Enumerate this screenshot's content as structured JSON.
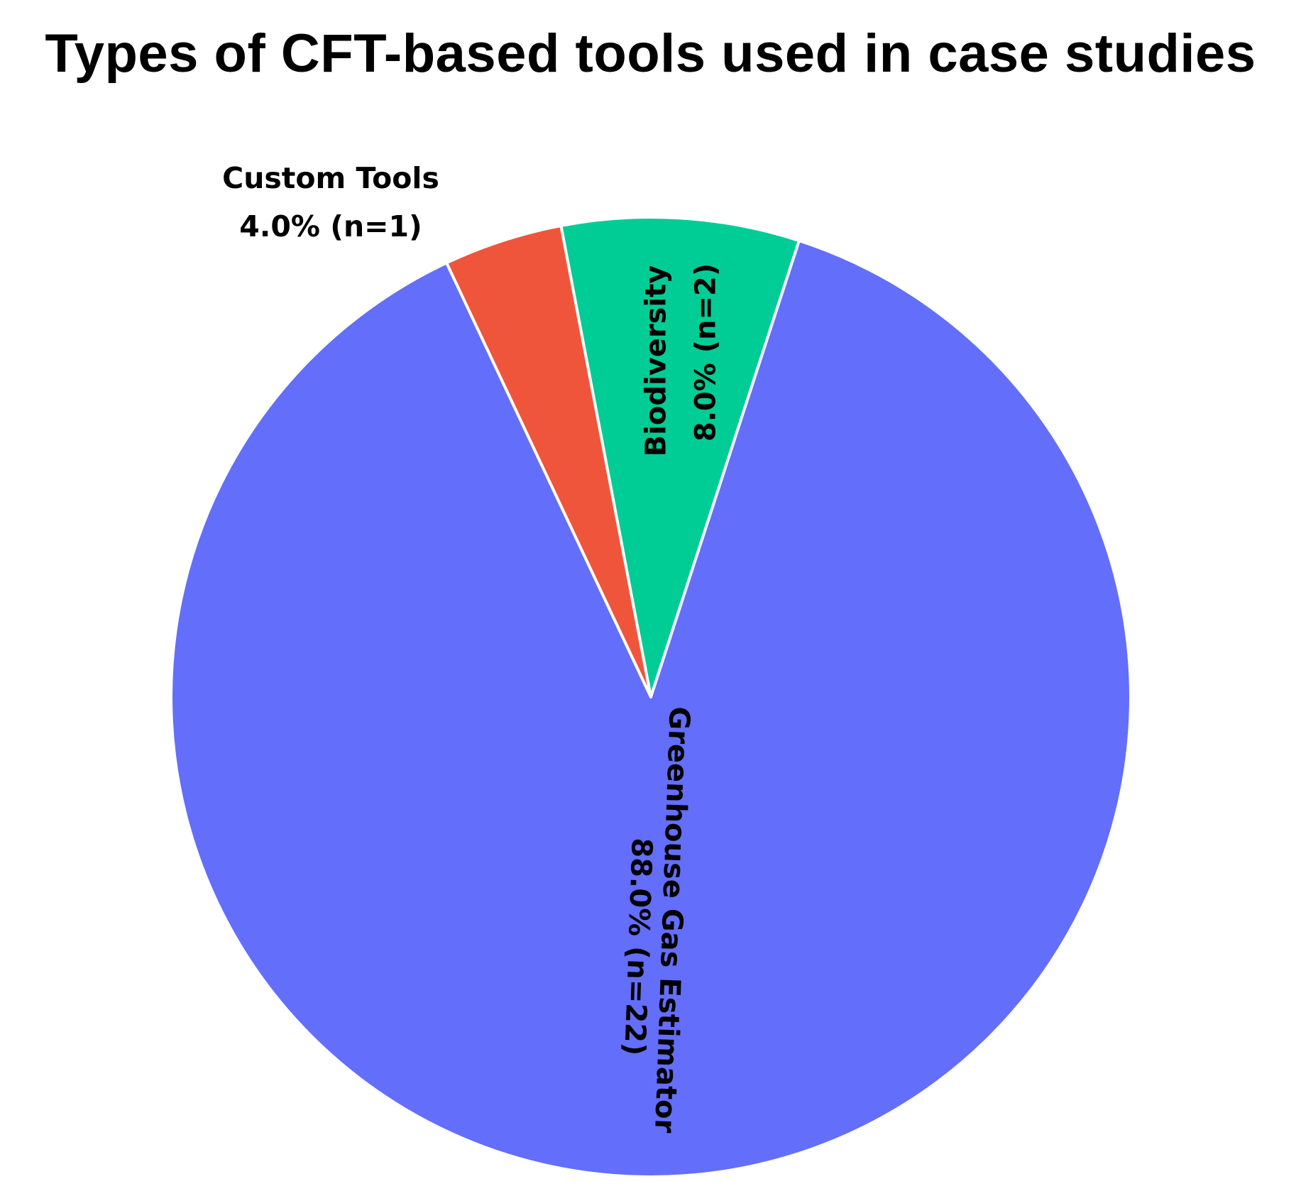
{
  "chart_data": {
    "type": "pie",
    "title": "Types of CFT-based tools used in case studies",
    "slices": [
      {
        "label": "Greenhouse Gas Estimator",
        "pct_text": "88.0% (n=22)",
        "value": 22,
        "percent": 88.0,
        "color": "#636efa"
      },
      {
        "label": "Biodiversity",
        "pct_text": "8.0% (n=2)",
        "value": 2,
        "percent": 8.0,
        "color": "#00cc96"
      },
      {
        "label": "Custom Tools",
        "pct_text": "4.0% (n=1)",
        "value": 1,
        "percent": 4.0,
        "color": "#ef553b"
      }
    ],
    "legend": "none"
  }
}
